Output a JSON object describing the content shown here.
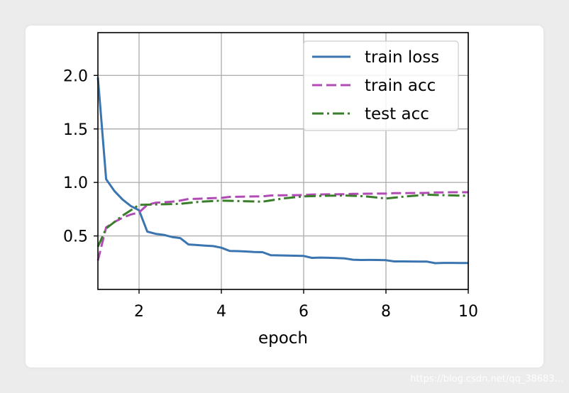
{
  "chart_data": {
    "type": "line",
    "title": "",
    "xlabel": "epoch",
    "ylabel": "",
    "xlim": [
      1,
      10
    ],
    "ylim": [
      0,
      2.4
    ],
    "xticks": [
      2,
      4,
      6,
      8,
      10
    ],
    "xtick_labels": [
      "2",
      "4",
      "6",
      "8",
      "10"
    ],
    "yticks": [
      0.5,
      1.0,
      1.5,
      2.0
    ],
    "ytick_labels": [
      "0.5",
      "1.0",
      "1.5",
      "2.0"
    ],
    "grid": true,
    "legend_position": "top-right",
    "series": [
      {
        "name": "train loss",
        "color": "#3a75b0",
        "style": "solid",
        "x": [
          1.0,
          1.2,
          1.4,
          1.6,
          1.8,
          2.0,
          2.2,
          2.4,
          2.6,
          2.8,
          3.0,
          3.2,
          3.4,
          3.6,
          3.8,
          4.0,
          4.2,
          4.4,
          4.6,
          4.8,
          5.0,
          5.2,
          5.4,
          5.6,
          5.8,
          6.0,
          6.2,
          6.4,
          6.6,
          6.8,
          7.0,
          7.2,
          7.4,
          7.6,
          7.8,
          8.0,
          8.2,
          8.4,
          8.6,
          8.8,
          9.0,
          9.2,
          9.4,
          9.6,
          9.8,
          10.0
        ],
        "y": [
          1.98,
          1.03,
          0.92,
          0.84,
          0.78,
          0.74,
          0.54,
          0.52,
          0.51,
          0.49,
          0.48,
          0.42,
          0.415,
          0.41,
          0.405,
          0.39,
          0.36,
          0.358,
          0.355,
          0.35,
          0.348,
          0.32,
          0.318,
          0.316,
          0.315,
          0.313,
          0.295,
          0.298,
          0.296,
          0.294,
          0.29,
          0.278,
          0.275,
          0.276,
          0.275,
          0.273,
          0.262,
          0.262,
          0.261,
          0.26,
          0.26,
          0.245,
          0.248,
          0.248,
          0.247,
          0.247
        ]
      },
      {
        "name": "train acc",
        "color": "#b24cb5",
        "style": "dashed",
        "x": [
          1.0,
          1.2,
          1.4,
          1.6,
          1.8,
          2.0,
          2.2,
          2.4,
          2.6,
          2.8,
          3.0,
          3.2,
          3.4,
          3.6,
          3.8,
          4.0,
          4.2,
          4.4,
          4.6,
          4.8,
          5.0,
          5.2,
          5.4,
          5.6,
          5.8,
          6.0,
          6.2,
          6.4,
          6.6,
          6.8,
          7.0,
          7.2,
          7.4,
          7.6,
          7.8,
          8.0,
          8.2,
          8.4,
          8.6,
          8.8,
          9.0,
          9.2,
          9.4,
          9.6,
          9.8,
          10.0
        ],
        "y": [
          0.27,
          0.58,
          0.63,
          0.67,
          0.7,
          0.72,
          0.79,
          0.81,
          0.815,
          0.82,
          0.83,
          0.845,
          0.847,
          0.85,
          0.853,
          0.855,
          0.865,
          0.866,
          0.868,
          0.869,
          0.87,
          0.878,
          0.879,
          0.88,
          0.881,
          0.882,
          0.887,
          0.888,
          0.889,
          0.889,
          0.89,
          0.894,
          0.894,
          0.895,
          0.896,
          0.896,
          0.9,
          0.9,
          0.901,
          0.901,
          0.902,
          0.907,
          0.907,
          0.908,
          0.908,
          0.908
        ]
      },
      {
        "name": "test acc",
        "color": "#3a7d2a",
        "style": "dashdot",
        "x": [
          1.0,
          1.2,
          1.4,
          1.6,
          1.8,
          2.0,
          2.5,
          3.0,
          3.5,
          4.0,
          4.5,
          5.0,
          5.5,
          6.0,
          6.5,
          7.0,
          7.5,
          8.0,
          8.5,
          9.0,
          9.5,
          10.0
        ],
        "y": [
          0.4,
          0.57,
          0.63,
          0.69,
          0.74,
          0.79,
          0.795,
          0.8,
          0.82,
          0.83,
          0.825,
          0.82,
          0.85,
          0.87,
          0.875,
          0.878,
          0.87,
          0.85,
          0.87,
          0.885,
          0.88,
          0.875
        ]
      }
    ]
  },
  "watermark": "https://blog.csdn.net/qq_38683..."
}
